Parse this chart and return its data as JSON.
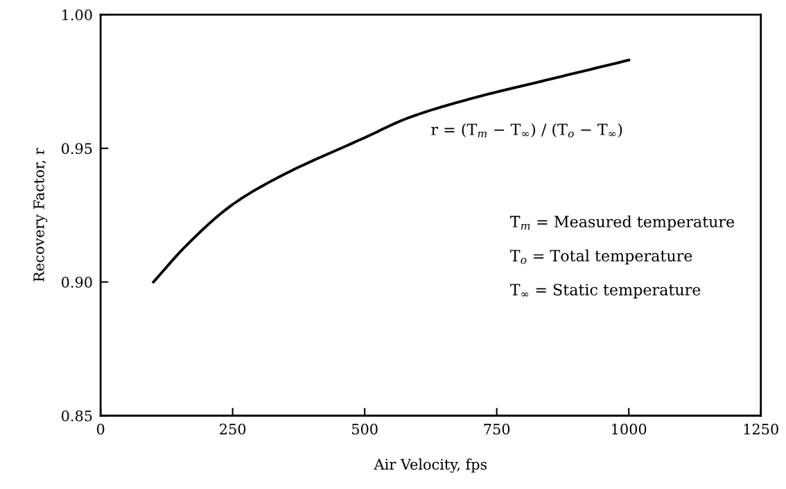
{
  "chart_data": {
    "type": "line",
    "xlabel": "Air Velocity, fps",
    "ylabel": "Recovery Factor, r",
    "x": [
      100,
      164,
      250,
      335,
      500,
      584,
      709,
      833,
      1000
    ],
    "series": [
      {
        "color": "#000000",
        "values": [
          0.9,
          0.914,
          0.929,
          0.939,
          0.954,
          0.9615,
          0.969,
          0.975,
          0.983
        ]
      }
    ],
    "xlim": [
      0,
      1250
    ],
    "xticks": [
      0,
      250,
      500,
      750,
      1000,
      1250
    ],
    "ylim": [
      0.85,
      1.0
    ],
    "yticks": [
      {
        "value": 0.85,
        "label": "0.85"
      },
      {
        "value": 0.9,
        "label": "0.90"
      },
      {
        "value": 0.95,
        "label": "0.95"
      },
      {
        "value": 1.0,
        "label": "1.00"
      }
    ],
    "grid": false,
    "legend": false,
    "marker": "none",
    "line_style": "solid",
    "annotations": [
      "r = (T$_{m}$ − T$_{∞}$) / (T$_{o}$ − T$_{∞}$)",
      "T$_{m}$ = Measured temperature",
      "T$_{o}$ = Total temperature",
      "T$_{∞}$ = Static temperature"
    ]
  }
}
